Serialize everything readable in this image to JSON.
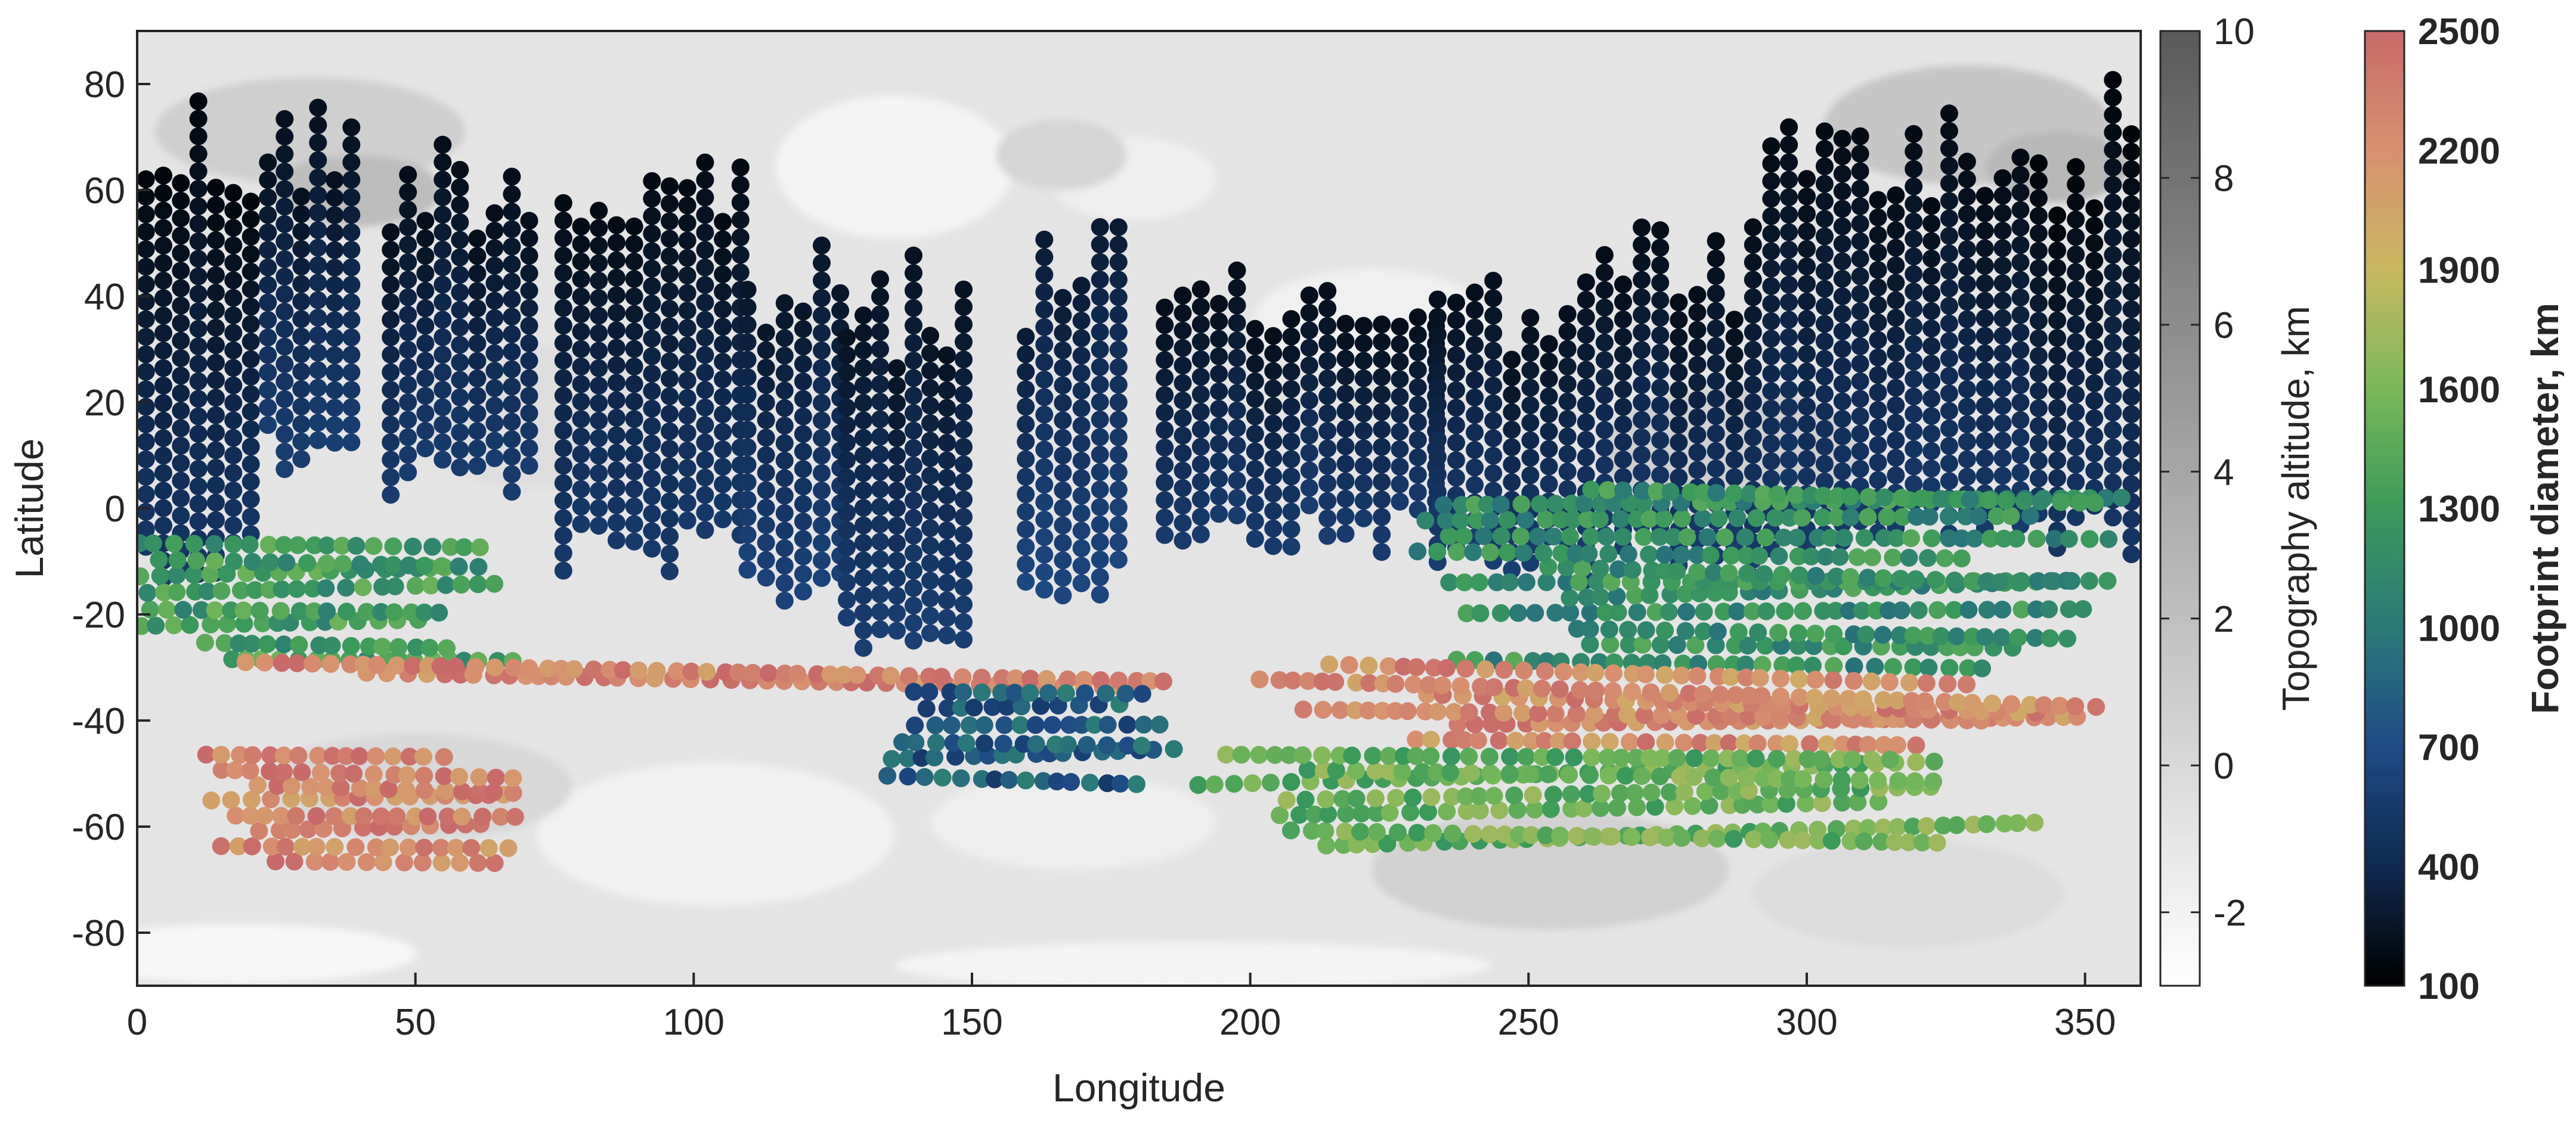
{
  "chart_data": {
    "type": "scatter",
    "title": "",
    "xlabel": "Longitude",
    "ylabel": "Latitude",
    "xlim": [
      0,
      360
    ],
    "ylim": [
      -90,
      90
    ],
    "x_ticks": [
      0,
      50,
      100,
      150,
      200,
      250,
      300,
      350
    ],
    "y_ticks": [
      -80,
      -60,
      -40,
      -20,
      0,
      20,
      40,
      60,
      80
    ],
    "grid": false,
    "background": "topography map (grayscale shaded contours)",
    "topography_colorbar": {
      "label": "Topography altitude, km",
      "range": [
        -3,
        10
      ],
      "ticks": [
        -2,
        0,
        2,
        4,
        6,
        8,
        10
      ],
      "colors": [
        "#ffffff",
        "#5a5a5a"
      ]
    },
    "footprint_colorbar": {
      "label": "Footprint diameter, km",
      "range": [
        100,
        2500
      ],
      "ticks": [
        100,
        400,
        700,
        1000,
        1300,
        1600,
        1900,
        2200,
        2500
      ],
      "colors": [
        "#000000",
        "#0f2a4f",
        "#1f4a85",
        "#2a7a78",
        "#3a9a5a",
        "#7ab85a",
        "#c8b860",
        "#d89070",
        "#c86a6a"
      ]
    },
    "observation_tracks": [
      {
        "lon": [
          0,
          22
        ],
        "lat": [
          -5,
          82
        ],
        "footprint": 150
      },
      {
        "lon": [
          22,
          40
        ],
        "lat": [
          15,
          78
        ],
        "footprint": 220
      },
      {
        "lon": [
          44,
          72
        ],
        "lat": [
          10,
          72
        ],
        "footprint": 200
      },
      {
        "lon": [
          75,
          110
        ],
        "lat": [
          -5,
          72
        ],
        "footprint": 180
      },
      {
        "lon": [
          108,
          128
        ],
        "lat": [
          -10,
          50
        ],
        "footprint": 260
      },
      {
        "lon": [
          126,
          150
        ],
        "lat": [
          -20,
          48
        ],
        "footprint": 230
      },
      {
        "lon": [
          158,
          178
        ],
        "lat": [
          -10,
          55
        ],
        "footprint": 300
      },
      {
        "lon": [
          183,
          235
        ],
        "lat": [
          0,
          45
        ],
        "footprint": 200
      },
      {
        "lon": [
          232,
          262
        ],
        "lat": [
          -5,
          45
        ],
        "footprint": 210
      },
      {
        "lon": [
          262,
          292
        ],
        "lat": [
          -5,
          55
        ],
        "footprint": 190
      },
      {
        "lon": [
          292,
          340
        ],
        "lat": [
          0,
          78
        ],
        "footprint": 180
      },
      {
        "lon": [
          340,
          360
        ],
        "lat": [
          0,
          82
        ],
        "footprint": 140
      },
      {
        "lon": [
          0,
          70
        ],
        "lat": [
          -30,
          -5
        ],
        "footprint": 1300
      },
      {
        "lon": [
          230,
          360
        ],
        "lat": [
          -30,
          5
        ],
        "footprint": 1200
      },
      {
        "lon": [
          0,
          200
        ],
        "lat": [
          -32,
          -28
        ],
        "footprint": 2300
      },
      {
        "lon": [
          200,
          360
        ],
        "lat": [
          -45,
          -28
        ],
        "footprint": 2250
      },
      {
        "lon": [
          130,
          190
        ],
        "lat": [
          -52,
          -33
        ],
        "footprint": 800
      },
      {
        "lon": [
          190,
          345
        ],
        "lat": [
          -65,
          -45
        ],
        "footprint": 1500
      },
      {
        "lon": [
          10,
          70
        ],
        "lat": [
          -68,
          -45
        ],
        "footprint": 2300
      }
    ]
  }
}
